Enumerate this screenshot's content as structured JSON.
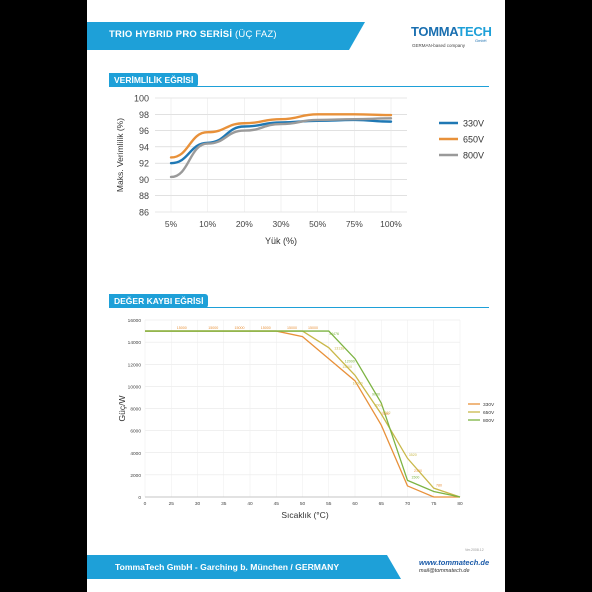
{
  "header": {
    "title": "TRIO HYBRID PRO SERİSİ",
    "subtitle": "(ÜÇ FAZ)",
    "brand_left": "TOMMA",
    "brand_right": "TECH",
    "brand_gmbh": "GmbH",
    "brand_tagline": "GERMAN-based company"
  },
  "colors": {
    "accent": "#1ea0d8",
    "series_330": "#1f78b4",
    "series_650": "#e8913a",
    "series_800": "#9a9a9a",
    "derating_330": "#e8913a",
    "derating_650": "#c9b84a",
    "derating_800": "#7cb342"
  },
  "sections": {
    "efficiency": "VERİMLİLİK EĞRİSİ",
    "derating": "DEĞER KAYBI EĞRİSİ"
  },
  "chart_data": [
    {
      "type": "line",
      "xlabel": "Yük (%)",
      "ylabel": "Maks. Verimlilik (%)",
      "categories": [
        "5%",
        "10%",
        "20%",
        "30%",
        "50%",
        "75%",
        "100%"
      ],
      "ylim": [
        86,
        100
      ],
      "yticks": [
        86,
        88,
        90,
        92,
        94,
        96,
        98,
        100
      ],
      "grid": true,
      "legend": "right",
      "series": [
        {
          "name": "330V",
          "values": [
            92.0,
            94.5,
            96.5,
            97.0,
            97.2,
            97.3,
            97.1
          ]
        },
        {
          "name": "650V",
          "values": [
            92.7,
            95.8,
            96.9,
            97.4,
            98.0,
            98.0,
            97.9
          ]
        },
        {
          "name": "800V",
          "values": [
            90.3,
            94.4,
            96.0,
            96.8,
            97.3,
            97.4,
            97.5
          ]
        }
      ]
    },
    {
      "type": "line",
      "xlabel": "Sıcaklık (°C)",
      "ylabel": "Güç/W",
      "xticks": [
        0,
        25,
        30,
        35,
        40,
        45,
        50,
        55,
        60,
        65,
        70,
        75,
        80
      ],
      "yticks": [
        0,
        2000,
        4000,
        6000,
        8000,
        10000,
        12000,
        14000,
        16000
      ],
      "ylim": [
        0,
        16000
      ],
      "grid": true,
      "legend": "right",
      "series": [
        {
          "name": "330V",
          "points": [
            [
              0,
              15000
            ],
            [
              45,
              15000
            ],
            [
              50,
              14500
            ],
            [
              55,
              12500
            ],
            [
              60,
              10500
            ],
            [
              65,
              6500
            ],
            [
              70,
              1000
            ],
            [
              75,
              0
            ],
            [
              80,
              0
            ]
          ]
        },
        {
          "name": "650V",
          "points": [
            [
              0,
              15000
            ],
            [
              50,
              15000
            ],
            [
              55,
              13500
            ],
            [
              60,
              11000
            ],
            [
              65,
              7500
            ],
            [
              70,
              3500
            ],
            [
              75,
              800
            ],
            [
              80,
              0
            ]
          ]
        },
        {
          "name": "800V",
          "points": [
            [
              0,
              15000
            ],
            [
              55,
              15000
            ],
            [
              60,
              12500
            ],
            [
              65,
              8500
            ],
            [
              70,
              1500
            ],
            [
              75,
              500
            ],
            [
              80,
              0
            ]
          ]
        }
      ],
      "labels": [
        "15000",
        "15000",
        "15000",
        "15000",
        "15000",
        "15000",
        "14476",
        "13138",
        "12000",
        "11500",
        "10000",
        "9000",
        "8000",
        "7312",
        "7250",
        "3520",
        "2100",
        "1500",
        "780"
      ]
    }
  ],
  "footer": {
    "company": "TommaTech GmbH - Garching b. München / GERMANY",
    "web": "www.tommatech.de",
    "mail": "mail@tommatech.de",
    "version": "Ver.2008.12"
  }
}
